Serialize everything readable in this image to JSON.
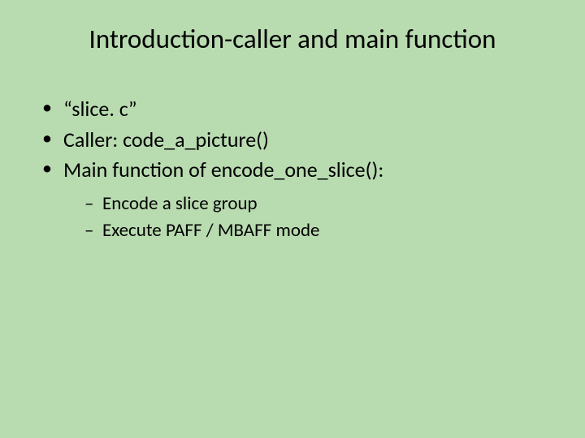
{
  "slide": {
    "background_color": "#b8dbb0",
    "text_color": "#000000",
    "title": "Introduction-caller and main function",
    "title_fontsize": 33,
    "bullets": [
      {
        "text": "“slice. c”"
      },
      {
        "text": "Caller: code_a_picture()"
      },
      {
        "text": "Main function of encode_one_slice():",
        "children": [
          {
            "text": "Encode a slice group"
          },
          {
            "text": "Execute PAFF / MBAFF mode"
          }
        ]
      }
    ],
    "body_fontsize": 26,
    "sub_fontsize": 23,
    "font_family": "Calibri"
  }
}
